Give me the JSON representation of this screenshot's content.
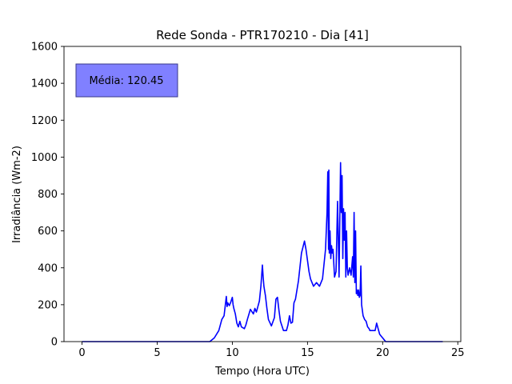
{
  "chart_data": {
    "type": "line",
    "title": "Rede Sonda - PTR170210 - Dia [41]",
    "xlabel": "Tempo (Hora UTC)",
    "ylabel": "Irradiância (Wm-2)",
    "xlim": [
      -1.2,
      25.2
    ],
    "ylim": [
      0,
      1600
    ],
    "xticks": [
      0,
      5,
      10,
      15,
      20,
      25
    ],
    "yticks": [
      0,
      200,
      400,
      600,
      800,
      1000,
      1200,
      1400,
      1600
    ],
    "grid": false,
    "legend": "none",
    "annotation": {
      "text": "Média: 120.45",
      "box_color": "#8080ff",
      "position": "top-left"
    },
    "series": [
      {
        "color": "#0000ff",
        "x": [
          0,
          4.0,
          5.0,
          8.5,
          8.8,
          9.1,
          9.3,
          9.45,
          9.6,
          9.65,
          9.7,
          9.8,
          9.9,
          10.0,
          10.05,
          10.1,
          10.2,
          10.3,
          10.4,
          10.5,
          10.6,
          10.8,
          10.9,
          11.0,
          11.2,
          11.4,
          11.5,
          11.6,
          11.8,
          11.9,
          12.0,
          12.05,
          12.1,
          12.2,
          12.3,
          12.4,
          12.6,
          12.8,
          12.9,
          13.0,
          13.1,
          13.2,
          13.4,
          13.6,
          13.7,
          13.8,
          13.9,
          14.0,
          14.1,
          14.2,
          14.4,
          14.6,
          14.8,
          14.9,
          15.0,
          15.1,
          15.2,
          15.4,
          15.6,
          15.8,
          16.0,
          16.2,
          16.3,
          16.35,
          16.4,
          16.42,
          16.45,
          16.5,
          16.55,
          16.6,
          16.65,
          16.7,
          16.8,
          16.9,
          17.0,
          17.1,
          17.2,
          17.25,
          17.3,
          17.35,
          17.4,
          17.45,
          17.5,
          17.55,
          17.6,
          17.65,
          17.7,
          17.8,
          17.9,
          18.0,
          18.05,
          18.1,
          18.15,
          18.2,
          18.25,
          18.3,
          18.35,
          18.4,
          18.45,
          18.5,
          18.55,
          18.6,
          18.7,
          18.8,
          18.9,
          19.0,
          19.1,
          19.15,
          19.2,
          19.3,
          19.4,
          19.5,
          19.6,
          19.8,
          19.9,
          20.0,
          20.1,
          20.2,
          20.4,
          20.6,
          20.8,
          21.0,
          21.2,
          22.0,
          24.0
        ],
        "y": [
          0,
          0,
          0,
          0,
          20,
          60,
          120,
          140,
          245,
          190,
          210,
          195,
          215,
          240,
          200,
          180,
          150,
          100,
          80,
          110,
          80,
          70,
          90,
          120,
          175,
          150,
          180,
          160,
          220,
          300,
          415,
          350,
          300,
          250,
          180,
          120,
          85,
          130,
          230,
          240,
          170,
          110,
          60,
          60,
          90,
          140,
          100,
          105,
          210,
          230,
          330,
          480,
          545,
          500,
          440,
          380,
          340,
          300,
          320,
          300,
          340,
          500,
          700,
          920,
          500,
          930,
          480,
          600,
          450,
          520,
          480,
          500,
          350,
          380,
          760,
          350,
          970,
          700,
          900,
          450,
          720,
          550,
          700,
          350,
          600,
          400,
          360,
          400,
          360,
          460,
          350,
          700,
          320,
          600,
          260,
          280,
          250,
          280,
          240,
          250,
          410,
          200,
          140,
          120,
          110,
          80,
          70,
          60,
          60,
          60,
          60,
          60,
          100,
          40,
          30,
          20,
          10,
          0,
          0,
          0,
          0,
          0,
          0,
          0,
          0
        ]
      }
    ]
  }
}
